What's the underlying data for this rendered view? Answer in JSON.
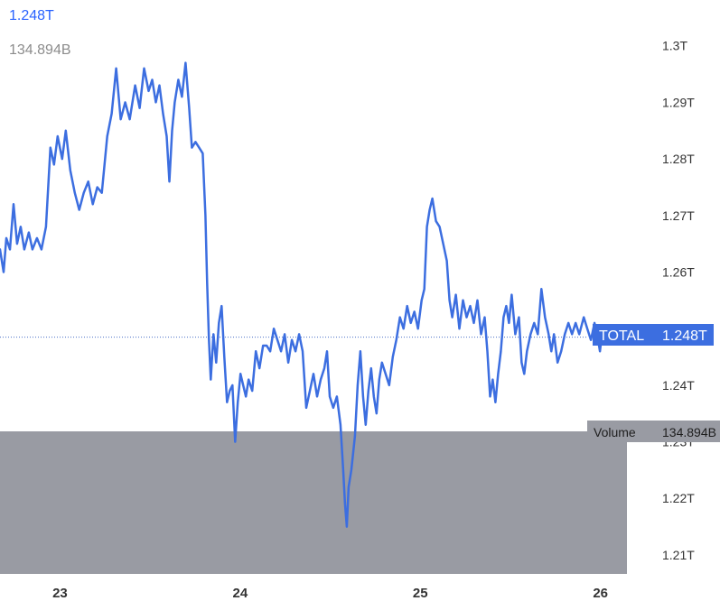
{
  "legend": {
    "price": "1.248T",
    "volume": "134.894B"
  },
  "colors": {
    "line": "#3c6ee0",
    "volume_bar": "#999ba3",
    "label_bg": "#3c6ee0",
    "volume_label_bg": "#999ba3",
    "axis_text": "#333333",
    "dotted": "#4a6fc6"
  },
  "chart_data": {
    "type": "line",
    "x_ticks": [
      {
        "label": "23",
        "x": 0.333
      },
      {
        "label": "24",
        "x": 1.333
      },
      {
        "label": "25",
        "x": 2.333
      },
      {
        "label": "26",
        "x": 3.333
      }
    ],
    "y_ticks": [
      "1.3T",
      "1.29T",
      "1.28T",
      "1.27T",
      "1.26T",
      "1.25T",
      "1.24T",
      "1.23T",
      "1.22T",
      "1.21T"
    ],
    "y_values": [
      1.3,
      1.29,
      1.28,
      1.27,
      1.26,
      1.25,
      1.24,
      1.23,
      1.22,
      1.21
    ],
    "ylim": [
      1.206,
      1.3065
    ],
    "xlim": [
      0,
      3.51
    ],
    "x_unit": "days",
    "series": [
      {
        "values_unit": "T",
        "points": [
          [
            0.0,
            1.264
          ],
          [
            0.02,
            1.26
          ],
          [
            0.035,
            1.266
          ],
          [
            0.055,
            1.264
          ],
          [
            0.075,
            1.272
          ],
          [
            0.095,
            1.265
          ],
          [
            0.115,
            1.268
          ],
          [
            0.135,
            1.264
          ],
          [
            0.16,
            1.267
          ],
          [
            0.18,
            1.264
          ],
          [
            0.205,
            1.266
          ],
          [
            0.23,
            1.264
          ],
          [
            0.255,
            1.268
          ],
          [
            0.28,
            1.282
          ],
          [
            0.3,
            1.279
          ],
          [
            0.32,
            1.284
          ],
          [
            0.345,
            1.28
          ],
          [
            0.365,
            1.285
          ],
          [
            0.39,
            1.278
          ],
          [
            0.415,
            1.274
          ],
          [
            0.44,
            1.271
          ],
          [
            0.465,
            1.274
          ],
          [
            0.49,
            1.276
          ],
          [
            0.515,
            1.272
          ],
          [
            0.54,
            1.275
          ],
          [
            0.565,
            1.274
          ],
          [
            0.595,
            1.284
          ],
          [
            0.62,
            1.288
          ],
          [
            0.645,
            1.296
          ],
          [
            0.67,
            1.287
          ],
          [
            0.695,
            1.29
          ],
          [
            0.72,
            1.287
          ],
          [
            0.75,
            1.293
          ],
          [
            0.775,
            1.289
          ],
          [
            0.8,
            1.296
          ],
          [
            0.825,
            1.292
          ],
          [
            0.845,
            1.294
          ],
          [
            0.865,
            1.29
          ],
          [
            0.885,
            1.293
          ],
          [
            0.905,
            1.288
          ],
          [
            0.925,
            1.284
          ],
          [
            0.94,
            1.276
          ],
          [
            0.955,
            1.285
          ],
          [
            0.97,
            1.29
          ],
          [
            0.99,
            1.294
          ],
          [
            1.01,
            1.291
          ],
          [
            1.03,
            1.297
          ],
          [
            1.05,
            1.289
          ],
          [
            1.065,
            1.282
          ],
          [
            1.085,
            1.283
          ],
          [
            1.105,
            1.282
          ],
          [
            1.125,
            1.281
          ],
          [
            1.14,
            1.27
          ],
          [
            1.15,
            1.258
          ],
          [
            1.16,
            1.248
          ],
          [
            1.17,
            1.241
          ],
          [
            1.185,
            1.249
          ],
          [
            1.2,
            1.244
          ],
          [
            1.215,
            1.251
          ],
          [
            1.23,
            1.254
          ],
          [
            1.245,
            1.245
          ],
          [
            1.26,
            1.237
          ],
          [
            1.275,
            1.239
          ],
          [
            1.29,
            1.24
          ],
          [
            1.305,
            1.23
          ],
          [
            1.32,
            1.237
          ],
          [
            1.335,
            1.242
          ],
          [
            1.35,
            1.24
          ],
          [
            1.365,
            1.238
          ],
          [
            1.38,
            1.241
          ],
          [
            1.4,
            1.239
          ],
          [
            1.42,
            1.246
          ],
          [
            1.44,
            1.243
          ],
          [
            1.46,
            1.247
          ],
          [
            1.48,
            1.247
          ],
          [
            1.5,
            1.246
          ],
          [
            1.52,
            1.25
          ],
          [
            1.54,
            1.248
          ],
          [
            1.56,
            1.246
          ],
          [
            1.58,
            1.249
          ],
          [
            1.6,
            1.244
          ],
          [
            1.62,
            1.248
          ],
          [
            1.64,
            1.246
          ],
          [
            1.66,
            1.249
          ],
          [
            1.68,
            1.246
          ],
          [
            1.7,
            1.236
          ],
          [
            1.72,
            1.239
          ],
          [
            1.74,
            1.242
          ],
          [
            1.76,
            1.238
          ],
          [
            1.78,
            1.241
          ],
          [
            1.8,
            1.243
          ],
          [
            1.815,
            1.246
          ],
          [
            1.83,
            1.238
          ],
          [
            1.85,
            1.236
          ],
          [
            1.87,
            1.238
          ],
          [
            1.89,
            1.233
          ],
          [
            1.905,
            1.225
          ],
          [
            1.915,
            1.219
          ],
          [
            1.925,
            1.215
          ],
          [
            1.935,
            1.222
          ],
          [
            1.95,
            1.225
          ],
          [
            1.97,
            1.231
          ],
          [
            1.985,
            1.24
          ],
          [
            2.0,
            1.246
          ],
          [
            2.015,
            1.238
          ],
          [
            2.03,
            1.233
          ],
          [
            2.045,
            1.239
          ],
          [
            2.06,
            1.243
          ],
          [
            2.075,
            1.238
          ],
          [
            2.09,
            1.235
          ],
          [
            2.105,
            1.241
          ],
          [
            2.12,
            1.244
          ],
          [
            2.14,
            1.242
          ],
          [
            2.16,
            1.24
          ],
          [
            2.18,
            1.245
          ],
          [
            2.2,
            1.248
          ],
          [
            2.22,
            1.252
          ],
          [
            2.24,
            1.25
          ],
          [
            2.26,
            1.254
          ],
          [
            2.28,
            1.251
          ],
          [
            2.3,
            1.253
          ],
          [
            2.32,
            1.25
          ],
          [
            2.34,
            1.255
          ],
          [
            2.355,
            1.257
          ],
          [
            2.37,
            1.268
          ],
          [
            2.385,
            1.271
          ],
          [
            2.4,
            1.273
          ],
          [
            2.42,
            1.269
          ],
          [
            2.44,
            1.268
          ],
          [
            2.46,
            1.265
          ],
          [
            2.48,
            1.262
          ],
          [
            2.495,
            1.255
          ],
          [
            2.51,
            1.252
          ],
          [
            2.53,
            1.256
          ],
          [
            2.55,
            1.25
          ],
          [
            2.57,
            1.255
          ],
          [
            2.59,
            1.252
          ],
          [
            2.61,
            1.254
          ],
          [
            2.63,
            1.251
          ],
          [
            2.65,
            1.255
          ],
          [
            2.67,
            1.249
          ],
          [
            2.69,
            1.252
          ],
          [
            2.705,
            1.246
          ],
          [
            2.72,
            1.238
          ],
          [
            2.735,
            1.241
          ],
          [
            2.75,
            1.237
          ],
          [
            2.765,
            1.242
          ],
          [
            2.78,
            1.246
          ],
          [
            2.795,
            1.252
          ],
          [
            2.81,
            1.254
          ],
          [
            2.825,
            1.251
          ],
          [
            2.84,
            1.256
          ],
          [
            2.86,
            1.249
          ],
          [
            2.88,
            1.252
          ],
          [
            2.895,
            1.244
          ],
          [
            2.91,
            1.242
          ],
          [
            2.925,
            1.246
          ],
          [
            2.945,
            1.249
          ],
          [
            2.965,
            1.251
          ],
          [
            2.985,
            1.249
          ],
          [
            3.005,
            1.257
          ],
          [
            3.025,
            1.252
          ],
          [
            3.045,
            1.249
          ],
          [
            3.06,
            1.246
          ],
          [
            3.075,
            1.249
          ],
          [
            3.095,
            1.244
          ],
          [
            3.115,
            1.246
          ],
          [
            3.135,
            1.249
          ],
          [
            3.155,
            1.251
          ],
          [
            3.175,
            1.249
          ],
          [
            3.195,
            1.251
          ],
          [
            3.215,
            1.249
          ],
          [
            3.24,
            1.252
          ],
          [
            3.26,
            1.25
          ],
          [
            3.28,
            1.248
          ],
          [
            3.3,
            1.251
          ],
          [
            3.315,
            1.249
          ],
          [
            3.33,
            1.246
          ],
          [
            3.345,
            1.25
          ],
          [
            3.36,
            1.248
          ]
        ]
      }
    ],
    "current_price": {
      "label": "TOTAL",
      "value_label": "1.248T",
      "value": 1.2485
    },
    "volume": {
      "label": "Volume",
      "value_label": "134.894B"
    }
  }
}
